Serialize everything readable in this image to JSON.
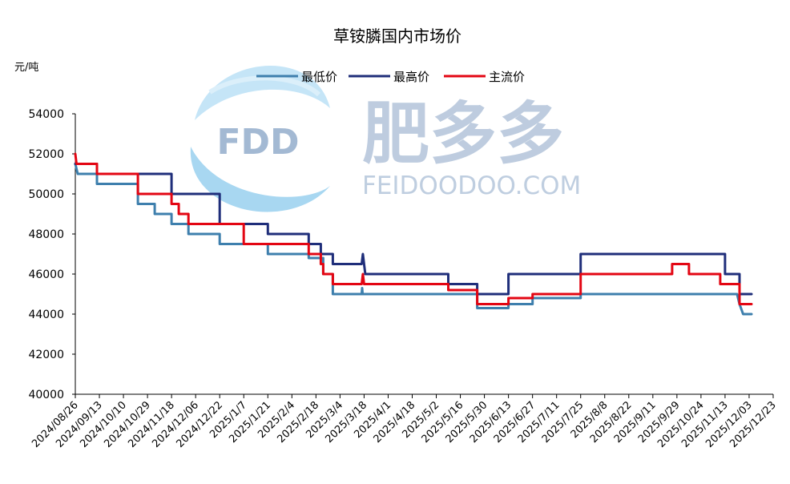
{
  "chart_data": {
    "type": "line",
    "title": "草铵膦国内市场价",
    "ylabel": "元/吨",
    "xlabel": "",
    "ylim": [
      40000,
      54000
    ],
    "yticks": [
      40000,
      42000,
      44000,
      46000,
      48000,
      50000,
      52000,
      54000
    ],
    "x_tick_labels": [
      "2024/08/26",
      "2024/09/13",
      "2024/10/10",
      "2024/10/29",
      "2024/11/18",
      "2024/12/06",
      "2024/12/22",
      "2025/1/7",
      "2025/1/21",
      "2025/2/4",
      "2025/2/18",
      "2025/3/4",
      "2025/3/18",
      "2025/4/1",
      "2025/4/18",
      "2025/5/2",
      "2025/5/16",
      "2025/5/30",
      "2025/6/13",
      "2025/6/27",
      "2025/7/11",
      "2025/7/25",
      "2025/8/8",
      "2025/8/22",
      "2025/9/11",
      "2025/9/29",
      "2025/10/24",
      "2025/11/13",
      "2025/12/03",
      "2025/12/23"
    ],
    "legend_position": "top-center",
    "grid": false,
    "watermark": {
      "logo_text": "FDD",
      "brand": "肥多多",
      "url": "FEIDOODOO.COM"
    },
    "series": [
      {
        "name": "最低价",
        "color": "#3e7fad",
        "points": [
          [
            0,
            51500
          ],
          [
            0.1,
            51000
          ],
          [
            0.9,
            51000
          ],
          [
            0.9,
            50500
          ],
          [
            2.6,
            50500
          ],
          [
            2.6,
            49500
          ],
          [
            3.3,
            49500
          ],
          [
            3.3,
            49000
          ],
          [
            4.0,
            49000
          ],
          [
            4.0,
            48500
          ],
          [
            4.7,
            48500
          ],
          [
            4.7,
            48000
          ],
          [
            6.0,
            48000
          ],
          [
            6.0,
            47500
          ],
          [
            8.0,
            47500
          ],
          [
            8.0,
            47000
          ],
          [
            9.7,
            47000
          ],
          [
            9.7,
            46800
          ],
          [
            10.3,
            46800
          ],
          [
            10.3,
            46000
          ],
          [
            10.7,
            46000
          ],
          [
            10.7,
            45000
          ],
          [
            11.9,
            45000
          ],
          [
            11.92,
            45300
          ],
          [
            11.94,
            45000
          ],
          [
            16.7,
            45000
          ],
          [
            16.7,
            44300
          ],
          [
            18.0,
            44300
          ],
          [
            18.0,
            44500
          ],
          [
            19.0,
            44500
          ],
          [
            19.0,
            44800
          ],
          [
            21.0,
            44800
          ],
          [
            21.0,
            45000
          ],
          [
            27.5,
            45000
          ],
          [
            27.6,
            44500
          ],
          [
            27.75,
            44000
          ],
          [
            28.1,
            44000
          ]
        ]
      },
      {
        "name": "最高价",
        "color": "#1f2e7a",
        "points": [
          [
            0,
            51500
          ],
          [
            0.9,
            51500
          ],
          [
            0.9,
            51000
          ],
          [
            4.0,
            51000
          ],
          [
            4.0,
            50000
          ],
          [
            6.0,
            50000
          ],
          [
            6.0,
            48500
          ],
          [
            8.0,
            48500
          ],
          [
            8.0,
            48000
          ],
          [
            9.7,
            48000
          ],
          [
            9.7,
            47500
          ],
          [
            10.2,
            47500
          ],
          [
            10.2,
            47000
          ],
          [
            10.7,
            47000
          ],
          [
            10.7,
            46500
          ],
          [
            11.9,
            46500
          ],
          [
            11.95,
            47000
          ],
          [
            12.05,
            46000
          ],
          [
            15.5,
            46000
          ],
          [
            15.5,
            45500
          ],
          [
            16.7,
            45500
          ],
          [
            16.7,
            45000
          ],
          [
            18.0,
            45000
          ],
          [
            18.0,
            46000
          ],
          [
            21.0,
            46000
          ],
          [
            21.0,
            47000
          ],
          [
            27.0,
            47000
          ],
          [
            27.0,
            46000
          ],
          [
            27.6,
            46000
          ],
          [
            27.6,
            45000
          ],
          [
            28.1,
            45000
          ]
        ]
      },
      {
        "name": "主流价",
        "color": "#e30613",
        "points": [
          [
            0,
            52000
          ],
          [
            0.05,
            51500
          ],
          [
            0.9,
            51500
          ],
          [
            0.9,
            51000
          ],
          [
            2.6,
            51000
          ],
          [
            2.6,
            50000
          ],
          [
            4.0,
            50000
          ],
          [
            4.0,
            49500
          ],
          [
            4.3,
            49500
          ],
          [
            4.3,
            49000
          ],
          [
            4.7,
            49000
          ],
          [
            4.7,
            48500
          ],
          [
            7.0,
            48500
          ],
          [
            7.0,
            47500
          ],
          [
            9.7,
            47500
          ],
          [
            9.7,
            47000
          ],
          [
            10.2,
            47000
          ],
          [
            10.2,
            46500
          ],
          [
            10.3,
            46500
          ],
          [
            10.3,
            46000
          ],
          [
            10.7,
            46000
          ],
          [
            10.7,
            45500
          ],
          [
            11.9,
            45500
          ],
          [
            11.95,
            46000
          ],
          [
            12.0,
            45500
          ],
          [
            15.5,
            45500
          ],
          [
            15.5,
            45200
          ],
          [
            16.7,
            45200
          ],
          [
            16.7,
            44500
          ],
          [
            18.0,
            44500
          ],
          [
            18.0,
            44800
          ],
          [
            19.0,
            44800
          ],
          [
            19.0,
            45000
          ],
          [
            21.0,
            45000
          ],
          [
            21.0,
            46000
          ],
          [
            24.8,
            46000
          ],
          [
            24.8,
            46500
          ],
          [
            25.5,
            46500
          ],
          [
            25.5,
            46000
          ],
          [
            26.8,
            46000
          ],
          [
            26.8,
            45500
          ],
          [
            27.6,
            45500
          ],
          [
            27.6,
            44500
          ],
          [
            28.1,
            44500
          ]
        ]
      }
    ]
  }
}
